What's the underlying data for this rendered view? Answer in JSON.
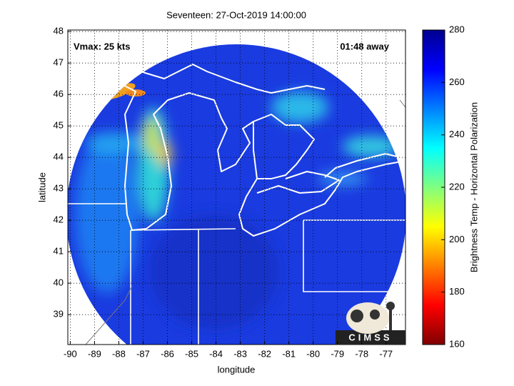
{
  "map": {
    "title": "Seventeen: 27-Oct-2019 14:00:00",
    "xlabel": "longitude",
    "ylabel": "latitude",
    "xlim": [
      -90.1,
      -76.2
    ],
    "ylim": [
      38.05,
      48.05
    ],
    "xticks": [
      -90,
      -89,
      -88,
      -87,
      -86,
      -85,
      -84,
      -83,
      -82,
      -81,
      -80,
      -79,
      -78,
      -77
    ],
    "yticks": [
      39,
      40,
      41,
      42,
      43,
      44,
      45,
      46,
      47,
      48
    ],
    "annotations": [
      "Vmax: 25 kts",
      "01:48 away"
    ],
    "colorbar": {
      "label": "Brightness Temp - Horizontal Polarization",
      "lim": [
        160,
        280
      ],
      "ticks": [
        160,
        180,
        200,
        220,
        240,
        260,
        280
      ]
    },
    "logo": "CIMSS"
  }
}
